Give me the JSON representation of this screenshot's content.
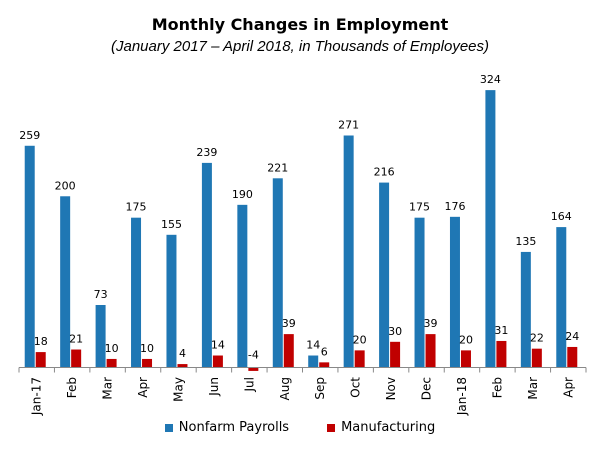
{
  "colors": {
    "series_1": "#1F77B4",
    "series_2": "#C00000",
    "axis": "#888888",
    "label": "#000000"
  },
  "chart_data": {
    "type": "bar",
    "title": "Monthly Changes in Employment",
    "subtitle": "(January 2017 – April 2018, in Thousands of Employees)",
    "xlabel": "",
    "ylabel": "",
    "ylim": [
      -4,
      324
    ],
    "grid": false,
    "legend_position": "bottom",
    "categories": [
      "Jan-17",
      "Feb",
      "Mar",
      "Apr",
      "May",
      "Jun",
      "Jul",
      "Aug",
      "Sep",
      "Oct",
      "Nov",
      "Dec",
      "Jan-18",
      "Feb",
      "Mar",
      "Apr"
    ],
    "series": [
      {
        "name": "Nonfarm Payrolls",
        "values": [
          259,
          200,
          73,
          175,
          155,
          239,
          190,
          221,
          14,
          271,
          216,
          175,
          176,
          324,
          135,
          164
        ]
      },
      {
        "name": "Manufacturing",
        "values": [
          18,
          21,
          10,
          10,
          4,
          14,
          -4,
          39,
          6,
          20,
          30,
          39,
          20,
          31,
          22,
          24
        ]
      }
    ]
  }
}
